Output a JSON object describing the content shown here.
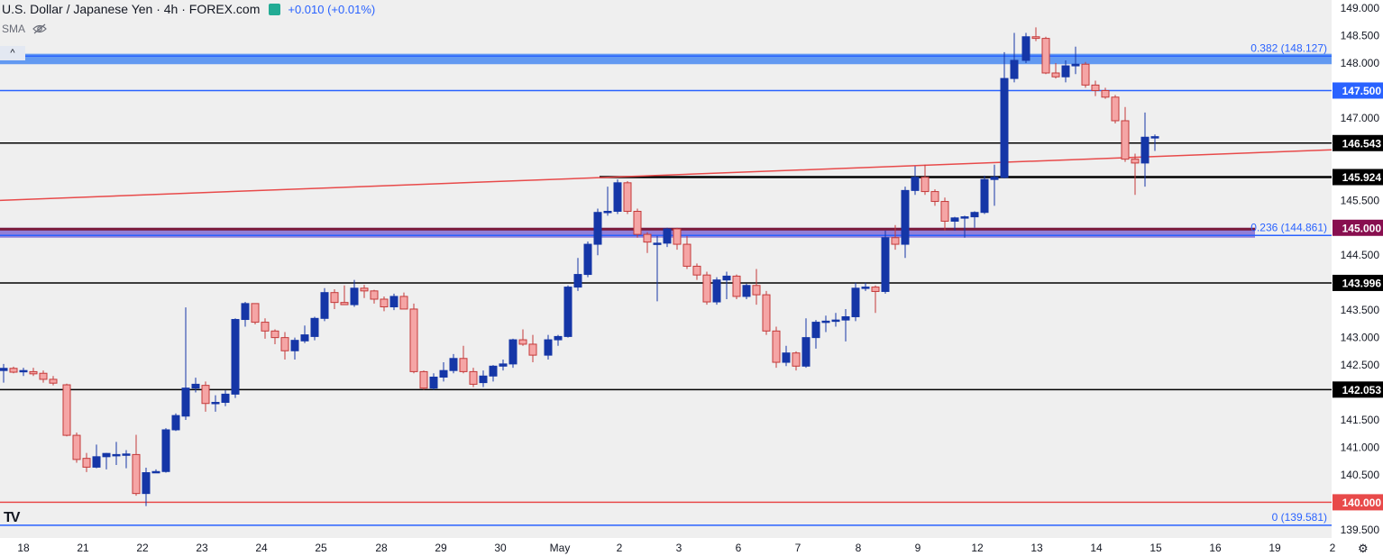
{
  "header": {
    "symbol": "U.S. Dollar / Japanese Yen · 4h · FOREX.com",
    "change": "+0.010 (+0.01%)",
    "indicator": "SMA",
    "collapse_glyph": "^",
    "hidden_icon": "eye-off-icon",
    "logo_text": "TV",
    "settings_icon": "gear-icon"
  },
  "colors": {
    "background": "#ffffff",
    "chart_bg": "#efefef",
    "up": "#1536a7",
    "down": "#f5a5a5",
    "down_border": "#c43a3a",
    "fib_line": "#2962ff",
    "red_line": "#e84a4a",
    "black_line": "#000000",
    "band_blue": "#5a94f0",
    "band_purple": "#8b78d6"
  },
  "chart_data": {
    "type": "candlestick",
    "timeframe": "4h",
    "ylim": [
      139.35,
      149.1
    ],
    "x_ticks": [
      "18",
      "21",
      "22",
      "23",
      "24",
      "25",
      "28",
      "29",
      "30",
      "May",
      "2",
      "3",
      "6",
      "7",
      "8",
      "9",
      "12",
      "13",
      "14",
      "15",
      "16",
      "19",
      "2"
    ],
    "y_ticks": [
      "149.000",
      "148.500",
      "148.000",
      "147.500",
      "147.000",
      "146.543",
      "145.924",
      "145.500",
      "145.000",
      "144.500",
      "143.996",
      "143.500",
      "143.000",
      "142.500",
      "142.053",
      "141.500",
      "141.000",
      "140.500",
      "140.000",
      "139.500"
    ],
    "horizontal_lines": [
      {
        "value": 147.5,
        "label": "147.500",
        "color": "#2962ff",
        "style": "line"
      },
      {
        "value": 146.543,
        "label": "146.543",
        "color": "#000000",
        "style": "line"
      },
      {
        "value": 145.924,
        "label": "145.924",
        "color": "#000000",
        "style": "line"
      },
      {
        "value": 145.0,
        "label": "145.000",
        "color": "#880e4f",
        "style": "line"
      },
      {
        "value": 143.996,
        "label": "143.996",
        "color": "#000000",
        "style": "line"
      },
      {
        "value": 142.053,
        "label": "142.053",
        "color": "#000000",
        "style": "line"
      },
      {
        "value": 140.0,
        "label": "140.000",
        "color": "#e84a4a",
        "style": "line"
      }
    ],
    "fib_levels": [
      {
        "value": 148.127,
        "label": "0.382 (148.127)"
      },
      {
        "value": 144.861,
        "label": "0.236 (144.861)"
      },
      {
        "value": 139.581,
        "label": "0 (139.581)"
      }
    ],
    "zones": [
      {
        "from": 147.98,
        "to": 148.17,
        "color": "blue"
      },
      {
        "from": 144.82,
        "to": 145.0,
        "color": "purple"
      }
    ],
    "trendlines": [
      {
        "from": [
          "18",
          145.5
        ],
        "to": [
          "19",
          146.3
        ],
        "color": "red"
      },
      {
        "from": [
          "May",
          145.93
        ],
        "to": [
          "12",
          145.93
        ],
        "color": "black"
      }
    ],
    "candles": [
      {
        "d": "18",
        "o": 142.4,
        "h": 142.52,
        "l": 142.18,
        "c": 142.44
      },
      {
        "d": "18",
        "o": 142.44,
        "h": 142.47,
        "l": 142.35,
        "c": 142.37
      },
      {
        "d": "18",
        "o": 142.38,
        "h": 142.45,
        "l": 142.3,
        "c": 142.4
      },
      {
        "d": "18",
        "o": 142.38,
        "h": 142.45,
        "l": 142.3,
        "c": 142.34
      },
      {
        "d": "18",
        "o": 142.35,
        "h": 142.4,
        "l": 142.18,
        "c": 142.24
      },
      {
        "d": "18",
        "o": 142.24,
        "h": 142.3,
        "l": 142.13,
        "c": 142.17
      },
      {
        "d": "21",
        "o": 142.14,
        "h": 142.16,
        "l": 141.2,
        "c": 141.22
      },
      {
        "d": "21",
        "o": 141.22,
        "h": 141.27,
        "l": 140.72,
        "c": 140.78
      },
      {
        "d": "21",
        "o": 140.8,
        "h": 140.9,
        "l": 140.55,
        "c": 140.64
      },
      {
        "d": "21",
        "o": 140.64,
        "h": 141.05,
        "l": 140.62,
        "c": 140.83
      },
      {
        "d": "21",
        "o": 140.83,
        "h": 140.9,
        "l": 140.6,
        "c": 140.89
      },
      {
        "d": "21",
        "o": 140.85,
        "h": 141.1,
        "l": 140.68,
        "c": 140.87
      },
      {
        "d": "22",
        "o": 140.86,
        "h": 140.95,
        "l": 140.62,
        "c": 140.88
      },
      {
        "d": "22",
        "o": 140.87,
        "h": 141.23,
        "l": 140.12,
        "c": 140.16
      },
      {
        "d": "22",
        "o": 140.16,
        "h": 140.63,
        "l": 139.93,
        "c": 140.54
      },
      {
        "d": "22",
        "o": 140.56,
        "h": 140.6,
        "l": 140.55,
        "c": 140.56
      },
      {
        "d": "22",
        "o": 140.56,
        "h": 141.35,
        "l": 140.54,
        "c": 141.32
      },
      {
        "d": "22",
        "o": 141.32,
        "h": 141.62,
        "l": 141.3,
        "c": 141.58
      },
      {
        "d": "23",
        "o": 141.57,
        "h": 143.55,
        "l": 141.5,
        "c": 142.08
      },
      {
        "d": "23",
        "o": 142.08,
        "h": 142.27,
        "l": 142.0,
        "c": 142.15
      },
      {
        "d": "23",
        "o": 142.13,
        "h": 142.2,
        "l": 141.65,
        "c": 141.8
      },
      {
        "d": "23",
        "o": 141.8,
        "h": 141.95,
        "l": 141.65,
        "c": 141.82
      },
      {
        "d": "23",
        "o": 141.82,
        "h": 142.04,
        "l": 141.75,
        "c": 141.97
      },
      {
        "d": "23",
        "o": 141.97,
        "h": 143.35,
        "l": 141.9,
        "c": 143.33
      },
      {
        "d": "24",
        "o": 143.33,
        "h": 143.65,
        "l": 143.2,
        "c": 143.62
      },
      {
        "d": "24",
        "o": 143.62,
        "h": 143.61,
        "l": 143.24,
        "c": 143.28
      },
      {
        "d": "24",
        "o": 143.28,
        "h": 143.35,
        "l": 142.98,
        "c": 143.12
      },
      {
        "d": "24",
        "o": 143.12,
        "h": 143.15,
        "l": 142.88,
        "c": 143.0
      },
      {
        "d": "24",
        "o": 143.0,
        "h": 143.1,
        "l": 142.6,
        "c": 142.76
      },
      {
        "d": "24",
        "o": 142.76,
        "h": 143.0,
        "l": 142.6,
        "c": 142.95
      },
      {
        "d": "25",
        "o": 142.94,
        "h": 143.22,
        "l": 142.9,
        "c": 143.05
      },
      {
        "d": "25",
        "o": 143.02,
        "h": 143.38,
        "l": 142.95,
        "c": 143.35
      },
      {
        "d": "25",
        "o": 143.35,
        "h": 143.9,
        "l": 143.3,
        "c": 143.82
      },
      {
        "d": "25",
        "o": 143.82,
        "h": 143.88,
        "l": 143.52,
        "c": 143.64
      },
      {
        "d": "25",
        "o": 143.64,
        "h": 143.95,
        "l": 143.6,
        "c": 143.6
      },
      {
        "d": "25",
        "o": 143.6,
        "h": 144.05,
        "l": 143.56,
        "c": 143.9
      },
      {
        "d": "28",
        "o": 143.9,
        "h": 143.96,
        "l": 143.72,
        "c": 143.85
      },
      {
        "d": "28",
        "o": 143.85,
        "h": 143.87,
        "l": 143.62,
        "c": 143.7
      },
      {
        "d": "28",
        "o": 143.7,
        "h": 143.75,
        "l": 143.48,
        "c": 143.56
      },
      {
        "d": "28",
        "o": 143.56,
        "h": 143.8,
        "l": 143.5,
        "c": 143.75
      },
      {
        "d": "28",
        "o": 143.75,
        "h": 143.82,
        "l": 143.52,
        "c": 143.52
      },
      {
        "d": "28",
        "o": 143.52,
        "h": 143.62,
        "l": 142.35,
        "c": 142.38
      },
      {
        "d": "29",
        "o": 142.38,
        "h": 142.4,
        "l": 142.05,
        "c": 142.08
      },
      {
        "d": "29",
        "o": 142.08,
        "h": 142.35,
        "l": 142.05,
        "c": 142.28
      },
      {
        "d": "29",
        "o": 142.28,
        "h": 142.55,
        "l": 142.2,
        "c": 142.4
      },
      {
        "d": "29",
        "o": 142.4,
        "h": 142.7,
        "l": 142.35,
        "c": 142.62
      },
      {
        "d": "29",
        "o": 142.62,
        "h": 142.85,
        "l": 142.35,
        "c": 142.38
      },
      {
        "d": "29",
        "o": 142.38,
        "h": 142.45,
        "l": 142.1,
        "c": 142.15
      },
      {
        "d": "30",
        "o": 142.18,
        "h": 142.4,
        "l": 142.1,
        "c": 142.3
      },
      {
        "d": "30",
        "o": 142.3,
        "h": 142.5,
        "l": 142.2,
        "c": 142.48
      },
      {
        "d": "30",
        "o": 142.48,
        "h": 142.6,
        "l": 142.4,
        "c": 142.52
      },
      {
        "d": "30",
        "o": 142.52,
        "h": 142.98,
        "l": 142.45,
        "c": 142.96
      },
      {
        "d": "30",
        "o": 142.96,
        "h": 143.15,
        "l": 142.85,
        "c": 142.88
      },
      {
        "d": "30",
        "o": 142.88,
        "h": 143.05,
        "l": 142.55,
        "c": 142.68
      },
      {
        "d": "May",
        "o": 142.68,
        "h": 143.05,
        "l": 142.6,
        "c": 142.96
      },
      {
        "d": "May",
        "o": 142.96,
        "h": 143.05,
        "l": 142.85,
        "c": 143.02
      },
      {
        "d": "May",
        "o": 143.02,
        "h": 143.95,
        "l": 143.0,
        "c": 143.92
      },
      {
        "d": "May",
        "o": 143.92,
        "h": 144.45,
        "l": 143.85,
        "c": 144.15
      },
      {
        "d": "May",
        "o": 144.15,
        "h": 144.75,
        "l": 144.1,
        "c": 144.7
      },
      {
        "d": "May",
        "o": 144.7,
        "h": 145.35,
        "l": 144.5,
        "c": 145.28
      },
      {
        "d": "2",
        "o": 145.28,
        "h": 145.75,
        "l": 145.22,
        "c": 145.3
      },
      {
        "d": "2",
        "o": 145.3,
        "h": 145.88,
        "l": 145.25,
        "c": 145.82
      },
      {
        "d": "2",
        "o": 145.82,
        "h": 145.85,
        "l": 145.25,
        "c": 145.3
      },
      {
        "d": "2",
        "o": 145.3,
        "h": 145.35,
        "l": 144.82,
        "c": 144.88
      },
      {
        "d": "2",
        "o": 144.88,
        "h": 144.92,
        "l": 144.54,
        "c": 144.74
      },
      {
        "d": "2",
        "o": 144.72,
        "h": 144.85,
        "l": 143.66,
        "c": 144.72
      },
      {
        "d": "3",
        "o": 144.72,
        "h": 145.0,
        "l": 144.65,
        "c": 144.98
      },
      {
        "d": "3",
        "o": 144.98,
        "h": 145.0,
        "l": 144.6,
        "c": 144.7
      },
      {
        "d": "3",
        "o": 144.7,
        "h": 144.85,
        "l": 144.25,
        "c": 144.3
      },
      {
        "d": "3",
        "o": 144.3,
        "h": 144.35,
        "l": 144.05,
        "c": 144.14
      },
      {
        "d": "3",
        "o": 144.14,
        "h": 144.2,
        "l": 143.6,
        "c": 143.65
      },
      {
        "d": "3",
        "o": 143.65,
        "h": 144.1,
        "l": 143.6,
        "c": 144.05
      },
      {
        "d": "6",
        "o": 144.05,
        "h": 144.2,
        "l": 143.7,
        "c": 144.12
      },
      {
        "d": "6",
        "o": 144.12,
        "h": 144.15,
        "l": 143.7,
        "c": 143.75
      },
      {
        "d": "6",
        "o": 143.75,
        "h": 143.98,
        "l": 143.7,
        "c": 143.95
      },
      {
        "d": "6",
        "o": 143.95,
        "h": 144.25,
        "l": 143.6,
        "c": 143.78
      },
      {
        "d": "6",
        "o": 143.78,
        "h": 143.85,
        "l": 143.05,
        "c": 143.12
      },
      {
        "d": "6",
        "o": 143.12,
        "h": 143.2,
        "l": 142.45,
        "c": 142.55
      },
      {
        "d": "7",
        "o": 142.55,
        "h": 142.85,
        "l": 142.48,
        "c": 142.72
      },
      {
        "d": "7",
        "o": 142.72,
        "h": 142.75,
        "l": 142.4,
        "c": 142.48
      },
      {
        "d": "7",
        "o": 142.48,
        "h": 143.35,
        "l": 142.45,
        "c": 143.0
      },
      {
        "d": "7",
        "o": 143.0,
        "h": 143.32,
        "l": 142.8,
        "c": 143.28
      },
      {
        "d": "7",
        "o": 143.28,
        "h": 143.4,
        "l": 143.1,
        "c": 143.3
      },
      {
        "d": "7",
        "o": 143.3,
        "h": 143.45,
        "l": 143.2,
        "c": 143.32
      },
      {
        "d": "8",
        "o": 143.32,
        "h": 143.52,
        "l": 142.93,
        "c": 143.38
      },
      {
        "d": "8",
        "o": 143.38,
        "h": 144.0,
        "l": 143.3,
        "c": 143.9
      },
      {
        "d": "8",
        "o": 143.9,
        "h": 144.0,
        "l": 143.85,
        "c": 143.92
      },
      {
        "d": "8",
        "o": 143.92,
        "h": 143.95,
        "l": 143.45,
        "c": 143.84
      },
      {
        "d": "8",
        "o": 143.84,
        "h": 144.95,
        "l": 143.8,
        "c": 144.82
      },
      {
        "d": "8",
        "o": 144.82,
        "h": 145.05,
        "l": 144.6,
        "c": 144.7
      },
      {
        "d": "9",
        "o": 144.7,
        "h": 145.75,
        "l": 144.45,
        "c": 145.68
      },
      {
        "d": "9",
        "o": 145.68,
        "h": 146.12,
        "l": 145.6,
        "c": 145.92
      },
      {
        "d": "9",
        "o": 145.92,
        "h": 146.15,
        "l": 145.6,
        "c": 145.66
      },
      {
        "d": "9",
        "o": 145.66,
        "h": 145.7,
        "l": 145.4,
        "c": 145.48
      },
      {
        "d": "9",
        "o": 145.48,
        "h": 145.55,
        "l": 144.95,
        "c": 145.12
      },
      {
        "d": "9",
        "o": 145.12,
        "h": 145.2,
        "l": 144.95,
        "c": 145.18
      },
      {
        "d": "12",
        "o": 145.18,
        "h": 145.22,
        "l": 144.82,
        "c": 145.2
      },
      {
        "d": "12",
        "o": 145.2,
        "h": 145.3,
        "l": 145.0,
        "c": 145.28
      },
      {
        "d": "12",
        "o": 145.28,
        "h": 145.95,
        "l": 145.25,
        "c": 145.88
      },
      {
        "d": "12",
        "o": 145.88,
        "h": 146.15,
        "l": 145.4,
        "c": 145.92
      },
      {
        "d": "12",
        "o": 145.92,
        "h": 148.2,
        "l": 145.9,
        "c": 147.72
      },
      {
        "d": "12",
        "o": 147.72,
        "h": 148.55,
        "l": 147.65,
        "c": 148.05
      },
      {
        "d": "13",
        "o": 148.05,
        "h": 148.55,
        "l": 148.0,
        "c": 148.48
      },
      {
        "d": "13",
        "o": 148.48,
        "h": 148.65,
        "l": 148.4,
        "c": 148.45
      },
      {
        "d": "13",
        "o": 148.45,
        "h": 148.48,
        "l": 147.8,
        "c": 147.82
      },
      {
        "d": "13",
        "o": 147.82,
        "h": 148.0,
        "l": 147.72,
        "c": 147.75
      },
      {
        "d": "13",
        "o": 147.75,
        "h": 148.05,
        "l": 147.65,
        "c": 147.95
      },
      {
        "d": "13",
        "o": 147.95,
        "h": 148.3,
        "l": 147.8,
        "c": 147.98
      },
      {
        "d": "14",
        "o": 147.98,
        "h": 148.02,
        "l": 147.55,
        "c": 147.6
      },
      {
        "d": "14",
        "o": 147.6,
        "h": 147.68,
        "l": 147.4,
        "c": 147.5
      },
      {
        "d": "14",
        "o": 147.5,
        "h": 147.55,
        "l": 147.35,
        "c": 147.38
      },
      {
        "d": "14",
        "o": 147.38,
        "h": 147.42,
        "l": 146.9,
        "c": 146.95
      },
      {
        "d": "14",
        "o": 146.95,
        "h": 147.2,
        "l": 146.2,
        "c": 146.25
      },
      {
        "d": "14",
        "o": 146.25,
        "h": 146.35,
        "l": 145.6,
        "c": 146.18
      },
      {
        "d": "14",
        "o": 146.18,
        "h": 147.1,
        "l": 145.75,
        "c": 146.65
      },
      {
        "d": "15",
        "o": 146.65,
        "h": 146.7,
        "l": 146.4,
        "c": 146.66
      }
    ]
  }
}
